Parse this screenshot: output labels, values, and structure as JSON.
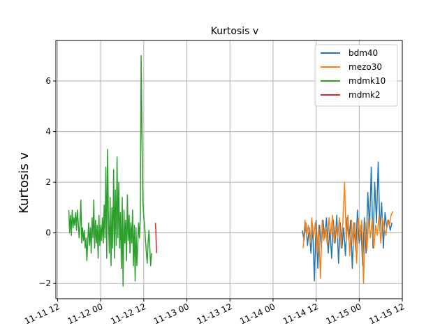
{
  "chart_data": {
    "type": "line",
    "title": "Kurtosis v",
    "xlabel": "",
    "ylabel": "Kurtosis v",
    "grid": true,
    "legend_placement": "top-right",
    "x_ticks": [
      {
        "x": 0.0,
        "label": "11-11 12"
      },
      {
        "x": 0.5,
        "label": "11-12 00"
      },
      {
        "x": 1.0,
        "label": "11-12 12"
      },
      {
        "x": 1.5,
        "label": "11-13 00"
      },
      {
        "x": 2.0,
        "label": "11-13 12"
      },
      {
        "x": 2.5,
        "label": "11-14 00"
      },
      {
        "x": 3.0,
        "label": "11-14 12"
      },
      {
        "x": 3.5,
        "label": "11-15 00"
      },
      {
        "x": 4.0,
        "label": "11-15 12"
      }
    ],
    "y_ticks": [
      {
        "y": -2,
        "label": "−2"
      },
      {
        "y": 0,
        "label": "0"
      },
      {
        "y": 2,
        "label": "2"
      },
      {
        "y": 4,
        "label": "4"
      },
      {
        "y": 6,
        "label": "6"
      }
    ],
    "xlim": [
      -0.02,
      4.0
    ],
    "ylim": [
      -2.6,
      7.6
    ],
    "series": [
      {
        "name": "bdm40",
        "color": "#1f77b4",
        "x": [
          2.84,
          2.86,
          2.88,
          2.9,
          2.92,
          2.94,
          2.96,
          2.98,
          3.0,
          3.02,
          3.04,
          3.06,
          3.08,
          3.1,
          3.12,
          3.14,
          3.16,
          3.18,
          3.2,
          3.22,
          3.24,
          3.26,
          3.28,
          3.3,
          3.32,
          3.34,
          3.36,
          3.38,
          3.4,
          3.42,
          3.44,
          3.46,
          3.48,
          3.5,
          3.52,
          3.54,
          3.56,
          3.58,
          3.6,
          3.62,
          3.64,
          3.66,
          3.68,
          3.7,
          3.72,
          3.74,
          3.76,
          3.78,
          3.8,
          3.82,
          3.84,
          3.86,
          3.88
        ],
        "y": [
          0.1,
          -0.3,
          0.4,
          -0.5,
          0.2,
          -0.8,
          0.3,
          -1.9,
          0.5,
          -1.4,
          0.3,
          -0.6,
          0.5,
          -0.2,
          0.6,
          -0.8,
          0.2,
          -1.0,
          0.5,
          -0.4,
          0.7,
          -1.2,
          0.4,
          -0.6,
          0.2,
          -0.9,
          0.6,
          -0.3,
          0.5,
          -1.4,
          0.4,
          -0.7,
          0.9,
          -0.4,
          0.3,
          -1.3,
          0.6,
          -0.8,
          1.6,
          0.2,
          2.6,
          -0.6,
          2.0,
          0.4,
          2.8,
          0.1,
          1.2,
          -0.6,
          0.8,
          0.2,
          0.5,
          0.1,
          0.4
        ]
      },
      {
        "name": "mezo30",
        "color": "#ff7f0e",
        "x": [
          2.85,
          2.87,
          2.89,
          2.91,
          2.93,
          2.95,
          2.97,
          2.99,
          3.01,
          3.03,
          3.05,
          3.07,
          3.09,
          3.11,
          3.13,
          3.15,
          3.17,
          3.19,
          3.21,
          3.23,
          3.25,
          3.27,
          3.29,
          3.31,
          3.33,
          3.35,
          3.37,
          3.39,
          3.41,
          3.43,
          3.45,
          3.47,
          3.49,
          3.51,
          3.53,
          3.55,
          3.57,
          3.59,
          3.61,
          3.63,
          3.65,
          3.67,
          3.69,
          3.71,
          3.73,
          3.75,
          3.77,
          3.79,
          3.81,
          3.83,
          3.85,
          3.87,
          3.89
        ],
        "y": [
          -0.6,
          0.5,
          -0.1,
          0.3,
          -0.4,
          0.6,
          -0.2,
          0.4,
          -0.8,
          0.3,
          -1.8,
          0.5,
          -0.3,
          0.2,
          -0.5,
          0.6,
          -0.1,
          0.7,
          -0.4,
          0.3,
          -0.2,
          0.6,
          -0.6,
          0.4,
          2.0,
          -0.3,
          0.7,
          -0.9,
          0.5,
          -0.5,
          0.4,
          -1.2,
          0.6,
          -0.3,
          0.5,
          -2.0,
          0.4,
          -0.7,
          0.6,
          -0.2,
          0.5,
          -0.6,
          0.3,
          -0.1,
          0.7,
          -0.4,
          0.6,
          0.2,
          -0.1,
          0.5,
          0.3,
          0.7,
          0.85
        ]
      },
      {
        "name": "mdmk10",
        "color": "#2ca02c",
        "x": [
          0.13,
          0.14,
          0.15,
          0.16,
          0.17,
          0.18,
          0.19,
          0.2,
          0.21,
          0.22,
          0.23,
          0.24,
          0.25,
          0.26,
          0.27,
          0.28,
          0.29,
          0.3,
          0.31,
          0.32,
          0.33,
          0.34,
          0.35,
          0.36,
          0.37,
          0.38,
          0.39,
          0.4,
          0.41,
          0.42,
          0.43,
          0.44,
          0.45,
          0.46,
          0.47,
          0.48,
          0.49,
          0.5,
          0.51,
          0.52,
          0.53,
          0.54,
          0.55,
          0.56,
          0.57,
          0.58,
          0.59,
          0.6,
          0.61,
          0.62,
          0.63,
          0.64,
          0.65,
          0.66,
          0.67,
          0.68,
          0.69,
          0.7,
          0.71,
          0.72,
          0.73,
          0.74,
          0.75,
          0.76,
          0.77,
          0.78,
          0.79,
          0.8,
          0.81,
          0.82,
          0.83,
          0.84,
          0.85,
          0.86,
          0.87,
          0.88,
          0.89,
          0.9,
          0.91,
          0.92,
          0.93,
          0.94,
          0.95,
          0.96,
          0.97,
          0.98,
          0.99,
          1.0,
          1.01,
          1.02,
          1.03,
          1.04,
          1.05,
          1.06,
          1.07,
          1.08,
          1.09
        ],
        "y": [
          0.9,
          0.0,
          0.7,
          -0.1,
          0.9,
          0.2,
          0.6,
          0.3,
          0.8,
          0.1,
          0.9,
          0.4,
          -0.2,
          0.3,
          1.3,
          -0.4,
          0.2,
          -0.3,
          0.1,
          -0.6,
          -0.2,
          -1.1,
          -0.3,
          0.4,
          -0.5,
          0.2,
          -0.8,
          0.6,
          -0.2,
          1.3,
          -0.6,
          0.5,
          -0.4,
          0.3,
          -1.0,
          0.7,
          -0.5,
          0.3,
          -0.3,
          0.6,
          -0.4,
          1.1,
          -0.2,
          2.6,
          -1.0,
          3.3,
          0.5,
          -0.8,
          1.4,
          -1.3,
          1.0,
          -0.6,
          2.5,
          -1.0,
          1.7,
          -0.5,
          3.0,
          -0.2,
          2.0,
          -0.6,
          0.8,
          -1.4,
          1.4,
          -2.1,
          0.9,
          -0.4,
          0.5,
          -1.1,
          1.5,
          -0.3,
          0.7,
          -0.8,
          0.4,
          -0.4,
          0.9,
          -1.3,
          0.3,
          -1.9,
          0.2,
          -1.3,
          -0.5,
          0.4,
          -0.2,
          0.6,
          7.0,
          3.6,
          1.2,
          0.6,
          0.3,
          -0.3,
          -0.8,
          -1.2,
          -0.4,
          0.1,
          -0.6,
          -1.3,
          -0.8
        ]
      },
      {
        "name": "mdmk2",
        "color": "#d62728",
        "x": [
          1.135,
          1.14,
          1.145,
          1.15
        ],
        "y": [
          0.4,
          0.1,
          -0.4,
          -0.8
        ]
      }
    ]
  }
}
